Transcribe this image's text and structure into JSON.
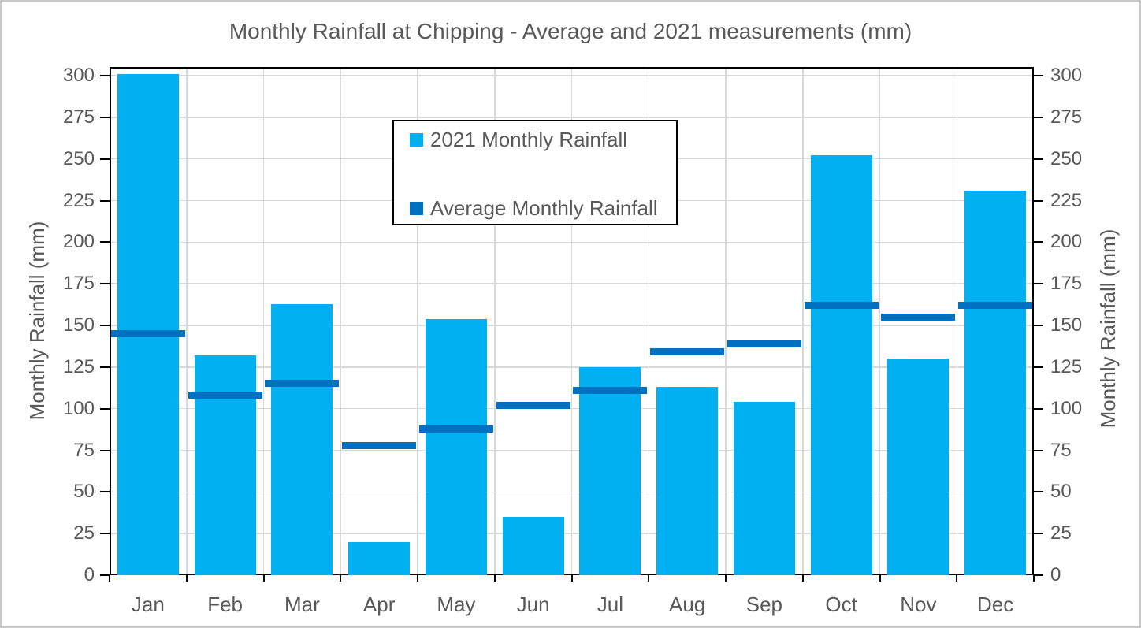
{
  "figure": {
    "title": "Monthly Rainfall at Chipping - Average and 2021 measurements (mm)"
  },
  "y_axis_left": {
    "title": "Monthly Rainfall (mm)",
    "ticks": [
      0,
      25,
      50,
      75,
      100,
      125,
      150,
      175,
      200,
      225,
      250,
      275,
      300
    ]
  },
  "y_axis_right": {
    "title": "Monthly Rainfall (mm)",
    "ticks": [
      0,
      25,
      50,
      75,
      100,
      125,
      150,
      175,
      200,
      225,
      250,
      275,
      300
    ]
  },
  "x_axis": {
    "labels": [
      "Jan",
      "Feb",
      "Mar",
      "Apr",
      "May",
      "Jun",
      "Jul",
      "Aug",
      "Sep",
      "Oct",
      "Nov",
      "Dec"
    ]
  },
  "legend": {
    "items": [
      {
        "label": "2021 Monthly Rainfall",
        "marker": "square",
        "marker_color": "#00B0F0"
      },
      {
        "label": "Average Monthly Rainfall",
        "marker": "square",
        "marker_color": "#0070C0"
      }
    ]
  },
  "colors": {
    "bar_2021": "#00B0F0",
    "average_marker": "#0070C0",
    "text": "#595959",
    "gridline": "#D9D9D9",
    "axis_line": "#000000",
    "figure_border": "#C9C9C9",
    "background": "#FFFFFF"
  },
  "chart_data": {
    "type": "bar",
    "title": "Monthly Rainfall at Chipping - Average and 2021 measurements (mm)",
    "categories": [
      "Jan",
      "Feb",
      "Mar",
      "Apr",
      "May",
      "Jun",
      "Jul",
      "Aug",
      "Sep",
      "Oct",
      "Nov",
      "Dec"
    ],
    "series": [
      {
        "name": "2021 Monthly Rainfall",
        "render": "bar",
        "color": "#00B0F0",
        "values": [
          301,
          132,
          163,
          20,
          154,
          35,
          125,
          113,
          104,
          252,
          130,
          231
        ]
      },
      {
        "name": "Average Monthly Rainfall",
        "render": "dash-marker",
        "color": "#0070C0",
        "values": [
          145,
          108,
          115,
          78,
          88,
          102,
          111,
          134,
          139,
          162,
          155,
          162
        ]
      }
    ],
    "xlabel": "",
    "ylabel": "Monthly Rainfall (mm)",
    "ylim": [
      0,
      305
    ],
    "ytick_step": 25,
    "grid": true,
    "vertical_gridlines": true,
    "secondary_y_axis": true,
    "legend_position": "inside-top-center"
  }
}
